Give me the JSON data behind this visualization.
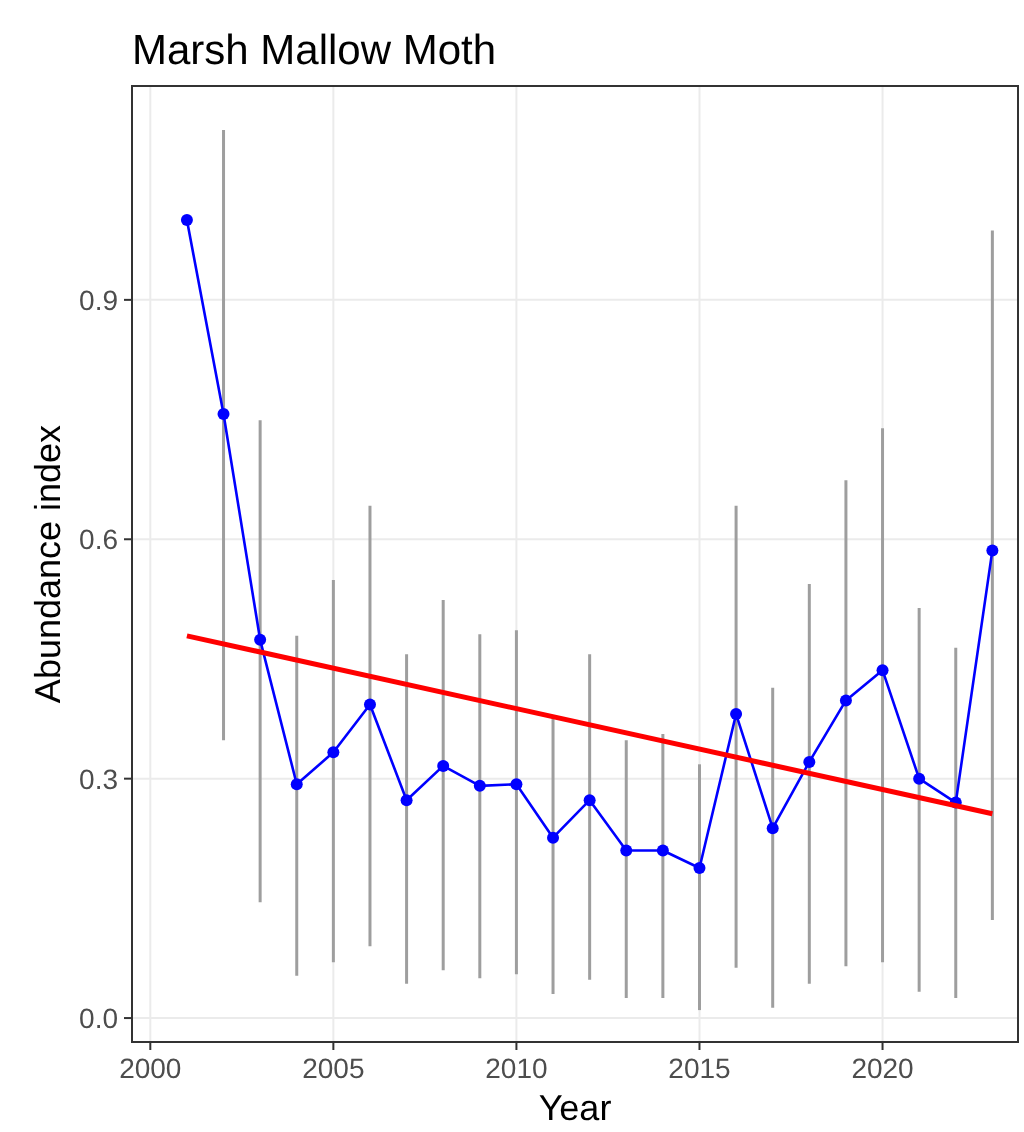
{
  "chart_data": {
    "type": "line",
    "title": "Marsh Mallow Moth",
    "xlabel": "Year",
    "ylabel": "Abundance index",
    "x": [
      2001,
      2002,
      2003,
      2004,
      2005,
      2006,
      2007,
      2008,
      2009,
      2010,
      2011,
      2012,
      2013,
      2014,
      2015,
      2016,
      2017,
      2018,
      2019,
      2020,
      2021,
      2022,
      2023
    ],
    "series": [
      {
        "color": "#0000ff",
        "marker": "circle",
        "values": [
          1.0,
          0.757,
          0.474,
          0.293,
          0.333,
          0.393,
          0.273,
          0.316,
          0.291,
          0.293,
          0.226,
          0.273,
          0.21,
          0.21,
          0.188,
          0.381,
          0.238,
          0.321,
          0.398,
          0.436,
          0.3,
          0.27,
          0.586
        ],
        "errors": [
          null,
          [
            0.348,
            1.113
          ],
          [
            0.145,
            0.749
          ],
          [
            0.053,
            0.479
          ],
          [
            0.07,
            0.549
          ],
          [
            0.09,
            0.642
          ],
          [
            0.043,
            0.456
          ],
          [
            0.06,
            0.524
          ],
          [
            0.05,
            0.481
          ],
          [
            0.055,
            0.486
          ],
          [
            0.03,
            0.378
          ],
          [
            0.048,
            0.456
          ],
          [
            0.025,
            0.348
          ],
          [
            0.025,
            0.356
          ],
          [
            0.01,
            0.318
          ],
          [
            0.063,
            0.642
          ],
          [
            0.013,
            0.414
          ],
          [
            0.043,
            0.544
          ],
          [
            0.065,
            0.674
          ],
          [
            0.07,
            0.739
          ],
          [
            0.033,
            0.514
          ],
          [
            0.025,
            0.464
          ],
          [
            0.123,
            0.987
          ]
        ]
      },
      {
        "type": "line",
        "color": "#ff0000",
        "marker": "none",
        "x": [
          2001,
          2023
        ],
        "values": [
          0.479,
          0.256
        ]
      }
    ],
    "xlim": [
      1999.5,
      2023.7
    ],
    "ylim": [
      -0.03,
      1.168
    ],
    "xticks": [
      2000,
      2005,
      2010,
      2015,
      2020
    ],
    "yticks": [
      {
        "value": 0,
        "label": "0.0"
      },
      0.3,
      0.6,
      0.9
    ],
    "grid": true
  }
}
